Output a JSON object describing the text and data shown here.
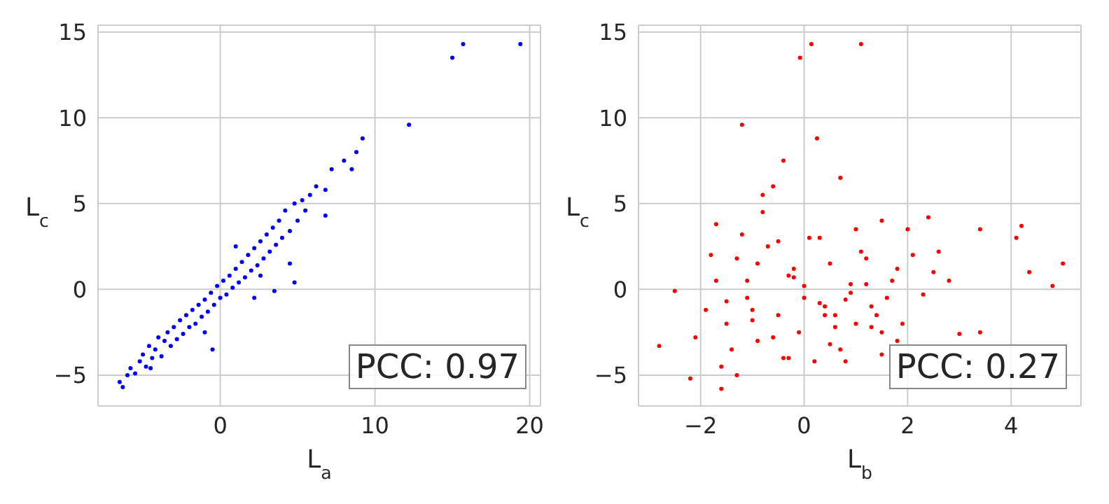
{
  "chart_data": [
    {
      "type": "scatter",
      "xlabel": "L$_{a}$",
      "ylabel": "L$_{c}$",
      "xlim": [
        -7.9,
        20.7
      ],
      "xticks": [
        0,
        10,
        20
      ],
      "ylim": [
        -6.8,
        15.4
      ],
      "yticks": [
        -5,
        0,
        5,
        10,
        15
      ],
      "grid": true,
      "marker": "circle",
      "annotations": [
        "PCC: 0.97"
      ],
      "series": [
        {
          "color": "#0000ff",
          "x": [
            -6.5,
            -6.3,
            -6.0,
            -5.8,
            -5.5,
            -5.2,
            -5.0,
            -4.8,
            -4.6,
            -4.4,
            -4.2,
            -4.0,
            -3.8,
            -3.6,
            -3.4,
            -3.2,
            -3.0,
            -2.8,
            -2.6,
            -2.4,
            -2.2,
            -2.0,
            -1.8,
            -1.6,
            -1.4,
            -1.2,
            -1.0,
            -0.8,
            -0.6,
            -0.4,
            -0.2,
            0,
            0.2,
            0.4,
            0.6,
            0.8,
            1.0,
            1.2,
            1.4,
            1.6,
            1.8,
            2.0,
            2.2,
            2.4,
            2.6,
            2.8,
            3.0,
            3.2,
            3.4,
            3.6,
            3.8,
            4.0,
            4.2,
            4.5,
            4.8,
            5.0,
            5.3,
            2.6,
            4.5,
            3.5,
            -0.5,
            -1.0,
            -4.5,
            5.8,
            6.2,
            5.5,
            6.8,
            7.2,
            8.0,
            8.5,
            8.8,
            9.2,
            6.8,
            12.2,
            15.0,
            15.7,
            19.4,
            4.8,
            2.2,
            1.0
          ],
          "values": [
            -5.4,
            -5.7,
            -5.0,
            -4.6,
            -4.9,
            -4.2,
            -3.8,
            -4.5,
            -3.3,
            -4.0,
            -3.5,
            -2.8,
            -3.9,
            -3.0,
            -2.5,
            -3.3,
            -2.2,
            -2.9,
            -1.8,
            -2.6,
            -1.5,
            -2.2,
            -1.2,
            -2.0,
            -0.9,
            -1.6,
            -0.6,
            -1.3,
            -0.2,
            -0.9,
            0.2,
            -0.5,
            0.5,
            -0.3,
            0.8,
            0.1,
            1.2,
            0.4,
            1.6,
            0.7,
            2.0,
            1.1,
            2.4,
            1.4,
            2.8,
            1.8,
            3.2,
            2.2,
            3.6,
            2.6,
            4.0,
            3.0,
            4.6,
            3.4,
            5.0,
            4.0,
            5.2,
            0.8,
            1.5,
            -0.1,
            -3.5,
            -2.5,
            -4.6,
            5.5,
            6.0,
            4.6,
            5.8,
            7.0,
            7.5,
            7.0,
            8.0,
            8.8,
            4.3,
            9.6,
            13.5,
            14.3,
            14.3,
            0.4,
            -0.5,
            2.5
          ]
        }
      ]
    },
    {
      "type": "scatter",
      "xlabel": "L$_{b}$",
      "ylabel": "L$_{c}$",
      "xlim": [
        -3.2,
        5.35
      ],
      "xticks": [
        -2,
        0,
        2,
        4
      ],
      "ylim": [
        -6.8,
        15.4
      ],
      "yticks": [
        -5,
        0,
        5,
        10,
        15
      ],
      "grid": true,
      "marker": "circle",
      "annotations": [
        "PCC: 0.27"
      ],
      "series": [
        {
          "color": "#ff0000",
          "x": [
            0.14,
            1.1,
            -0.08,
            -1.2,
            0.25,
            5.0,
            4.8,
            4.2,
            4.1,
            4.35,
            3.4,
            -2.8,
            -2.5,
            -1.6,
            -1.9,
            -1.7,
            -1.5,
            -1.3,
            -1.1,
            -0.9,
            -0.7,
            -0.5,
            -0.3,
            -0.1,
            0.1,
            0.3,
            0.5,
            0.7,
            0.9,
            1.1,
            1.3,
            1.5,
            1.7,
            1.9,
            2.1,
            2.3,
            2.5,
            2.8,
            3.0,
            -1.8,
            -1.4,
            -1.0,
            -0.6,
            -0.2,
            0.2,
            0.6,
            1.0,
            1.4,
            1.8,
            1.5,
            -1.6,
            -1.2,
            -0.8,
            -0.4,
            0,
            0.4,
            0.8,
            1.2,
            1.6,
            2.0,
            -2.1,
            -1.5,
            -0.9,
            -0.3,
            0.3,
            0.9,
            1.5,
            2.4,
            -1.0,
            -0.5,
            0.5,
            1.0,
            -1.7,
            -1.3,
            -0.6,
            0.0,
            0.7,
            1.3,
            -2.2,
            -0.4,
            0.4,
            1.8,
            2.6,
            3.4,
            -0.8,
            0.6,
            -1.1,
            1.2,
            0.8,
            -0.2
          ],
          "values": [
            14.3,
            14.3,
            13.5,
            9.6,
            8.8,
            1.5,
            0.2,
            3.7,
            3.0,
            1.0,
            3.5,
            -3.3,
            -0.1,
            -5.8,
            -1.2,
            0.5,
            -2.0,
            1.8,
            -0.5,
            -3.0,
            2.5,
            -1.5,
            0.8,
            -2.5,
            3.0,
            -0.8,
            1.5,
            -3.5,
            0.3,
            2.2,
            -1.0,
            4.0,
            0.5,
            -2.0,
            2.0,
            -0.3,
            1.0,
            0.5,
            -2.6,
            2.0,
            -3.5,
            -1.8,
            -2.8,
            1.2,
            -4.2,
            -2.2,
            3.5,
            -1.5,
            1.2,
            -3.8,
            -4.5,
            3.2,
            4.5,
            -4.0,
            0.2,
            -1.0,
            -4.2,
            1.8,
            -0.5,
            3.5,
            -2.8,
            -0.7,
            1.5,
            -4.0,
            3.0,
            -0.2,
            -2.5,
            4.2,
            -1.2,
            2.8,
            -3.2,
            -2.0,
            3.8,
            -5.0,
            6.0,
            -0.5,
            6.5,
            -2.2,
            -5.2,
            7.5,
            -1.5,
            -3.0,
            2.2,
            -2.5,
            5.5,
            -1.5,
            0.5,
            0.3,
            -0.6,
            0.7
          ]
        }
      ]
    }
  ]
}
